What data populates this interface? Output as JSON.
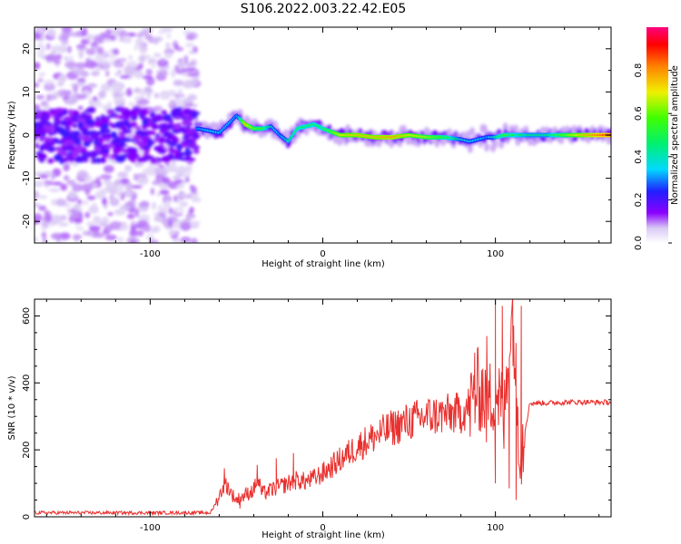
{
  "title": "S106.2022.003.22.42.E05",
  "chart_data": [
    {
      "type": "heatmap",
      "xlabel": "Height of straight line (km)",
      "ylabel": "Frequency (Hz)",
      "xlim": [
        -167,
        167
      ],
      "ylim": [
        -25,
        25
      ],
      "xticks": [
        -100,
        0,
        100
      ],
      "yticks": [
        -20,
        -10,
        0,
        10,
        20
      ],
      "grid": false,
      "colorbar": {
        "label": "Normalized spectral amplitude",
        "range": [
          0,
          1
        ],
        "ticks": [
          0.0,
          0.2,
          0.4,
          0.6,
          0.8
        ],
        "colormap": "rainbow (purple-blue-cyan-green-yellow-red-magenta)"
      },
      "signal_center_hz": {
        "x": [
          -72,
          -66,
          -60,
          -55,
          -50,
          -45,
          -40,
          -35,
          -30,
          -25,
          -20,
          -15,
          -10,
          -5,
          0,
          10,
          20,
          30,
          40,
          50,
          60,
          70,
          80,
          85,
          90,
          95,
          100,
          105,
          110,
          120,
          130,
          140,
          150,
          160,
          167
        ],
        "y": [
          1.5,
          1,
          0.5,
          2.5,
          4.5,
          2.5,
          1.5,
          1.5,
          2,
          0,
          -1.5,
          1.5,
          2,
          2.5,
          1.5,
          0,
          0,
          -0.5,
          -0.5,
          0,
          -0.5,
          -0.5,
          -1,
          -1.5,
          -1,
          -0.5,
          -0.5,
          0,
          0,
          0,
          0,
          0,
          0,
          0,
          0
        ],
        "peak_amplitude": [
          0.3,
          0.35,
          0.35,
          0.35,
          0.3,
          0.75,
          0.6,
          0.55,
          0.4,
          0.3,
          0.45,
          0.5,
          0.5,
          0.5,
          0.5,
          0.7,
          0.75,
          0.75,
          0.8,
          0.7,
          0.65,
          0.55,
          0.4,
          0.35,
          0.35,
          0.3,
          0.45,
          0.55,
          0.5,
          0.45,
          0.45,
          0.6,
          0.75,
          0.85,
          0.9
        ]
      },
      "noise_region": {
        "x_range": [
          -167,
          -73
        ],
        "description": "scattered low-amplitude energy across all frequencies"
      }
    },
    {
      "type": "line",
      "xlabel": "Height of straight line (km)",
      "ylabel": "SNR (10 * v/v)",
      "xlim": [
        -167,
        167
      ],
      "ylim": [
        0,
        650
      ],
      "xticks": [
        -100,
        0,
        100
      ],
      "yticks": [
        0,
        200,
        400,
        600
      ],
      "grid": false,
      "series": [
        {
          "color": "#e8312f",
          "x": [
            -167,
            -130,
            -100,
            -80,
            -65,
            -60,
            -57,
            -55,
            -53,
            -50,
            -45,
            -40,
            -38,
            -35,
            -30,
            -25,
            -20,
            -15,
            -10,
            -5,
            0,
            10,
            20,
            30,
            40,
            50,
            60,
            70,
            80,
            85,
            88,
            90,
            93,
            95,
            98,
            100,
            103,
            105,
            108,
            110,
            113,
            115,
            120,
            130,
            140,
            150,
            160,
            167
          ],
          "y": [
            12,
            12,
            12,
            12,
            12,
            60,
            100,
            90,
            70,
            50,
            65,
            80,
            115,
            70,
            80,
            90,
            100,
            110,
            105,
            115,
            130,
            170,
            210,
            240,
            265,
            285,
            300,
            305,
            310,
            330,
            360,
            380,
            370,
            330,
            360,
            390,
            340,
            280,
            520,
            600,
            300,
            200,
            340,
            340,
            342,
            343,
            342,
            342
          ],
          "spikes": [
            {
              "x": -57,
              "y": 145
            },
            {
              "x": -48,
              "y": 25
            },
            {
              "x": -38,
              "y": 155
            },
            {
              "x": -27,
              "y": 175
            },
            {
              "x": -17,
              "y": 190
            },
            {
              "x": 88,
              "y": 490
            },
            {
              "x": 95,
              "y": 540
            },
            {
              "x": 100,
              "y": 645
            },
            {
              "x": 100,
              "y": 100
            },
            {
              "x": 104,
              "y": 630
            },
            {
              "x": 108,
              "y": 85
            },
            {
              "x": 110,
              "y": 650
            },
            {
              "x": 112,
              "y": 50
            },
            {
              "x": 115,
              "y": 630
            }
          ]
        }
      ]
    }
  ]
}
